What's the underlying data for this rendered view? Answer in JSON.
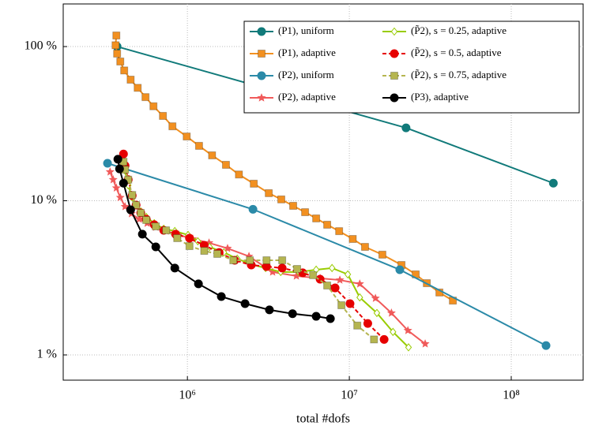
{
  "chart_data": {
    "type": "line",
    "x_label": "total #dofs",
    "xscale": "log",
    "yscale": "log",
    "grid": true,
    "legend": "upper right",
    "xlim": [
      171000,
      278000000
    ],
    "ylim": [
      0.686,
      189
    ],
    "xticks": [
      {
        "value": 1000000,
        "label": "10⁶"
      },
      {
        "value": 10000000,
        "label": "10⁷"
      },
      {
        "value": 100000000,
        "label": "10⁸"
      }
    ],
    "yticks": [
      {
        "value": 1,
        "label": "1 %"
      },
      {
        "value": 10,
        "label": "10 %"
      },
      {
        "value": 100,
        "label": "100 %"
      }
    ],
    "series": [
      {
        "name": "(P1), uniform",
        "color": "#117a7a",
        "marker": "circle",
        "dash": false,
        "x": [
          368000,
          22400000,
          182000000
        ],
        "values": [
          100,
          29.7,
          13.0
        ]
      },
      {
        "name": "(P1), adaptive",
        "color": "#f29020",
        "marker": "square",
        "dash": false,
        "x": [
          364000,
          360000,
          368000,
          385000,
          407000,
          446000,
          493000,
          551000,
          617000,
          706000,
          808000,
          990000,
          1180000,
          1420000,
          1730000,
          2080000,
          2570000,
          3180000,
          3800000,
          4500000,
          5330000,
          6240000,
          7300000,
          8650000,
          10500000,
          12500000,
          16000000,
          21000000,
          25700000,
          30100000,
          36000000,
          43600000
        ],
        "values": [
          118,
          102,
          90,
          80,
          70,
          61,
          54,
          47,
          41,
          35.5,
          30.4,
          26.1,
          22.7,
          19.7,
          17.1,
          14.8,
          12.9,
          11.2,
          10.2,
          9.27,
          8.43,
          7.68,
          6.99,
          6.35,
          5.65,
          5.02,
          4.47,
          3.83,
          3.33,
          2.92,
          2.54,
          2.25
        ]
      },
      {
        "name": "(P2), uniform",
        "color": "#2b8aa8",
        "marker": "circle",
        "dash": false,
        "x": [
          321000,
          2540000,
          20500000,
          164000000
        ],
        "values": [
          17.5,
          8.8,
          3.57,
          1.15
        ]
      },
      {
        "name": "(P2), adaptive",
        "color": "#f05a5a",
        "marker": "star",
        "dash": false,
        "x": [
          333000,
          348000,
          364000,
          385000,
          412000,
          451000,
          504000,
          564000,
          638000,
          738000,
          884000,
          1080000,
          1360000,
          1770000,
          2400000,
          3360000,
          4710000,
          6600000,
          8740000,
          11600000,
          14500000,
          18200000,
          23000000,
          29400000
        ],
        "values": [
          15.4,
          13.7,
          12.1,
          10.5,
          9.16,
          8.24,
          7.59,
          7.15,
          6.74,
          6.36,
          6.0,
          5.65,
          5.33,
          4.91,
          4.36,
          3.45,
          3.25,
          3.14,
          3.06,
          2.89,
          2.33,
          1.87,
          1.44,
          1.18
        ]
      },
      {
        "name": "(P̃2), s = 0.25, adaptive",
        "color": "#99cc00",
        "marker": "diamond",
        "dash": false,
        "x": [
          398000,
          412000,
          431000,
          456000,
          482000,
          515000,
          557000,
          624000,
          714000,
          836000,
          1010000,
          1160000,
          1370000,
          1680000,
          2030000,
          2480000,
          3040000,
          3770000,
          4880000,
          6240000,
          7820000,
          9780000,
          11600000,
          14800000,
          18600000,
          23200000
        ],
        "values": [
          19.2,
          15.7,
          12.6,
          10.5,
          9.37,
          8.53,
          7.85,
          7.15,
          6.58,
          6.36,
          6.0,
          5.46,
          5.02,
          4.62,
          4.21,
          3.87,
          3.66,
          3.45,
          3.45,
          3.57,
          3.66,
          3.33,
          2.36,
          1.87,
          1.41,
          1.12
        ]
      },
      {
        "name": "(P̃2), s = 0.5, adaptive",
        "color": "#e60000",
        "marker": "circle",
        "dash": true,
        "x": [
          403000,
          412000,
          431000,
          456000,
          482000,
          515000,
          557000,
          624000,
          714000,
          845000,
          1030000,
          1270000,
          1570000,
          1960000,
          2480000,
          3080000,
          3850000,
          5150000,
          6600000,
          8170000,
          10100000,
          13000000,
          16400000
        ],
        "values": [
          20.1,
          16.9,
          13.7,
          10.8,
          9.37,
          8.34,
          7.59,
          6.99,
          6.43,
          6.07,
          5.72,
          5.14,
          4.62,
          4.11,
          3.83,
          3.74,
          3.66,
          3.41,
          3.1,
          2.72,
          2.15,
          1.6,
          1.26
        ]
      },
      {
        "name": "(P̃2), s = 0.75, adaptive",
        "color": "#b5b550",
        "marker": "square",
        "dash": true,
        "x": [
          403000,
          412000,
          431000,
          456000,
          482000,
          515000,
          557000,
          638000,
          738000,
          865000,
          1030000,
          1270000,
          1530000,
          1920000,
          2430000,
          3080000,
          3850000,
          4760000,
          5970000,
          7300000,
          8940000,
          11200000,
          14200000
        ],
        "values": [
          17.9,
          15.9,
          13.7,
          10.9,
          9.37,
          8.34,
          7.5,
          6.82,
          6.43,
          5.72,
          5.08,
          4.73,
          4.52,
          4.11,
          4.11,
          4.11,
          4.11,
          3.61,
          3.29,
          2.82,
          2.1,
          1.55,
          1.26
        ]
      },
      {
        "name": "(P3), adaptive",
        "color": "#000000",
        "marker": "circle",
        "dash": false,
        "x": [
          372000,
          381000,
          403000,
          446000,
          527000,
          638000,
          836000,
          1170000,
          1620000,
          2270000,
          3210000,
          4460000,
          6240000,
          7640000
        ],
        "values": [
          18.6,
          16.1,
          13.0,
          8.73,
          6.07,
          5.02,
          3.66,
          2.89,
          2.39,
          2.15,
          1.96,
          1.85,
          1.78,
          1.72
        ]
      }
    ]
  }
}
